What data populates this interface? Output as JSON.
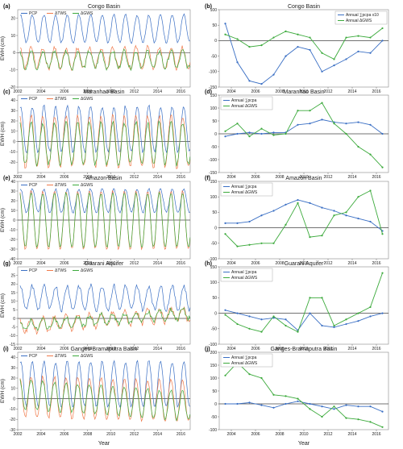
{
  "colors": {
    "pcp": "#3a6fc4",
    "tws": "#f07a4a",
    "gws": "#3caa3c",
    "zero": "#444444"
  },
  "xlabel": "Year",
  "left_ylabel": "EWH (cm)",
  "left_xticks": [
    "2002",
    "2004",
    "2006",
    "2008",
    "2010",
    "2012",
    "2014",
    "2016"
  ],
  "right_xticks": [
    "2004",
    "2006",
    "2008",
    "2010",
    "2012",
    "2014",
    "2016"
  ],
  "chart_data": [
    {
      "panel": "(a)",
      "side": "left",
      "type": "line",
      "title": "Congo Basin",
      "legend": [
        "PCP",
        "ΔTWS",
        "ΔGWS"
      ],
      "ylim": [
        -20,
        25
      ],
      "yticks": [
        -20,
        -10,
        0,
        10,
        20
      ],
      "series": {
        "pcp": {
          "base": 14,
          "amp": 8,
          "trend": 0,
          "noise": 1.5
        },
        "tws": {
          "base": -3,
          "amp": 6,
          "trend": 0,
          "noise": 3
        },
        "gws": {
          "base": -4,
          "amp": 5,
          "trend": 0,
          "noise": 3
        }
      }
    },
    {
      "panel": "(b)",
      "side": "right",
      "type": "line",
      "title": "Congo Basin",
      "legend": [
        "Annual ∑pcpa x10",
        "Annual ΔGWS"
      ],
      "ylim": [
        -150,
        100
      ],
      "yticks": [
        -150,
        -100,
        -50,
        0,
        50,
        100
      ],
      "x": [
        2003.5,
        2004.5,
        2005.5,
        2006.5,
        2007.5,
        2008.5,
        2009.5,
        2010.5,
        2011.5,
        2012.5,
        2013.5,
        2014.5,
        2015.5,
        2016.5
      ],
      "series_a": [
        55,
        -70,
        -130,
        -140,
        -110,
        -50,
        -20,
        -30,
        -100,
        -80,
        -60,
        -35,
        -40,
        0
      ],
      "series_b": [
        20,
        5,
        -20,
        -15,
        10,
        30,
        20,
        10,
        -40,
        -60,
        10,
        15,
        10,
        40
      ]
    },
    {
      "panel": "(c)",
      "side": "left",
      "type": "line",
      "title": "Maranhao Basin",
      "legend": [
        "PCP",
        "ΔTWS",
        "ΔGWS"
      ],
      "ylim": [
        -30,
        45
      ],
      "yticks": [
        -20,
        -10,
        0,
        10,
        20,
        30,
        40
      ],
      "series": {
        "pcp": {
          "base": 12,
          "amp": 22,
          "trend": 0,
          "noise": 4
        },
        "tws": {
          "base": 0,
          "amp": 25,
          "trend": 0,
          "noise": 4
        },
        "gws": {
          "base": -2,
          "amp": 20,
          "trend": 0,
          "noise": 5
        }
      }
    },
    {
      "panel": "(d)",
      "side": "right",
      "type": "line",
      "title": "Maranhao Basin",
      "legend": [
        "Annual ∑pcpa",
        "Annual ΔGWS"
      ],
      "ylim": [
        -150,
        150
      ],
      "yticks": [
        -150,
        -100,
        -50,
        0,
        50,
        100,
        150
      ],
      "x": [
        2003.5,
        2004.5,
        2005.5,
        2006.5,
        2007.5,
        2008.5,
        2009.5,
        2010.5,
        2011.5,
        2012.5,
        2013.5,
        2014.5,
        2015.5,
        2016.5
      ],
      "series_a": [
        -10,
        0,
        5,
        0,
        5,
        5,
        35,
        40,
        55,
        45,
        40,
        45,
        35,
        0
      ],
      "series_b": [
        10,
        40,
        -10,
        20,
        -5,
        0,
        90,
        90,
        120,
        40,
        0,
        -50,
        -80,
        -130
      ]
    },
    {
      "panel": "(e)",
      "side": "left",
      "type": "line",
      "title": "Amazon Basin",
      "legend": [
        "PCP",
        "ΔTWS",
        "ΔGWS"
      ],
      "ylim": [
        -40,
        40
      ],
      "yticks": [
        -40,
        -30,
        -20,
        -10,
        0,
        10,
        20,
        30,
        40
      ],
      "series": {
        "pcp": {
          "base": 20,
          "amp": 12,
          "trend": 0,
          "noise": 2
        },
        "tws": {
          "base": 0,
          "amp": 30,
          "trend": 0,
          "noise": 2
        },
        "gws": {
          "base": 0,
          "amp": 28,
          "trend": 0,
          "noise": 2
        }
      }
    },
    {
      "panel": "(f)",
      "side": "right",
      "type": "line",
      "title": "Amazon Basin",
      "legend": [
        "Annual ∑pcpa",
        "Annual ΔGWS"
      ],
      "ylim": [
        -100,
        150
      ],
      "yticks": [
        -100,
        -50,
        0,
        50,
        100,
        150
      ],
      "x": [
        2003.5,
        2004.5,
        2005.5,
        2006.5,
        2007.5,
        2008.5,
        2009.5,
        2010.5,
        2011.5,
        2012.5,
        2013.5,
        2014.5,
        2015.5,
        2016.5
      ],
      "series_a": [
        15,
        15,
        20,
        40,
        55,
        75,
        90,
        80,
        65,
        55,
        40,
        30,
        20,
        -10
      ],
      "series_b": [
        -20,
        -60,
        -55,
        -50,
        -50,
        10,
        80,
        -30,
        -25,
        40,
        50,
        100,
        120,
        -20
      ]
    },
    {
      "panel": "(g)",
      "side": "left",
      "type": "line",
      "title": "Guarani Aquifer",
      "legend": [
        "PCP",
        "ΔTWS",
        "ΔGWS"
      ],
      "ylim": [
        -15,
        30
      ],
      "yticks": [
        -15,
        -10,
        -5,
        0,
        5,
        10,
        15,
        20,
        25
      ],
      "series": {
        "pcp": {
          "base": 12,
          "amp": 7,
          "trend": 0,
          "noise": 3
        },
        "tws": {
          "base": -1,
          "amp": 4,
          "trend": 0.5,
          "noise": 3
        },
        "gws": {
          "base": -1,
          "amp": 3,
          "trend": 0.5,
          "noise": 3
        }
      }
    },
    {
      "panel": "(h)",
      "side": "right",
      "type": "line",
      "title": "Guarani Aquifer",
      "legend": [
        "Annual ∑pcpa",
        "Annual ΔGWS"
      ],
      "ylim": [
        -100,
        150
      ],
      "yticks": [
        -100,
        -50,
        0,
        50,
        100,
        150
      ],
      "x": [
        2003.5,
        2004.5,
        2005.5,
        2006.5,
        2007.5,
        2008.5,
        2009.5,
        2010.5,
        2011.5,
        2012.5,
        2013.5,
        2014.5,
        2015.5,
        2016.5
      ],
      "series_a": [
        10,
        0,
        -10,
        -20,
        -15,
        -20,
        -55,
        0,
        -40,
        -45,
        -35,
        -25,
        -10,
        0
      ],
      "series_b": [
        -5,
        -35,
        -50,
        -60,
        -10,
        -40,
        -60,
        50,
        50,
        -40,
        -20,
        0,
        20,
        130
      ]
    },
    {
      "panel": "(i)",
      "side": "left",
      "type": "line",
      "title": "Ganges-Bramaputra Basin",
      "legend": [
        "PCP",
        "ΔTWS",
        "ΔGWS"
      ],
      "ylim": [
        -30,
        45
      ],
      "yticks": [
        -30,
        -20,
        -10,
        0,
        10,
        20,
        30,
        40
      ],
      "series": {
        "pcp": {
          "base": 14,
          "amp": 22,
          "trend": 0,
          "noise": 3
        },
        "tws": {
          "base": 0,
          "amp": 20,
          "trend": -0.3,
          "noise": 3
        },
        "gws": {
          "base": -1,
          "amp": 14,
          "trend": -0.8,
          "noise": 3
        }
      }
    },
    {
      "panel": "(j)",
      "side": "right",
      "type": "line",
      "title": "Ganges-Bramaputra Basin",
      "legend": [
        "Annual ∑pcpa",
        "Annual ΔGWS"
      ],
      "ylim": [
        -100,
        200
      ],
      "yticks": [
        -100,
        -50,
        0,
        50,
        100,
        150,
        200
      ],
      "x": [
        2003.5,
        2004.5,
        2005.5,
        2006.5,
        2007.5,
        2008.5,
        2009.5,
        2010.5,
        2011.5,
        2012.5,
        2013.5,
        2014.5,
        2015.5,
        2016.5
      ],
      "series_a": [
        0,
        0,
        5,
        -5,
        -15,
        0,
        10,
        0,
        -10,
        -20,
        -5,
        -10,
        -10,
        -30
      ],
      "series_b": [
        110,
        160,
        115,
        100,
        35,
        30,
        20,
        -20,
        -50,
        -10,
        -55,
        -60,
        -70,
        -90
      ]
    }
  ]
}
